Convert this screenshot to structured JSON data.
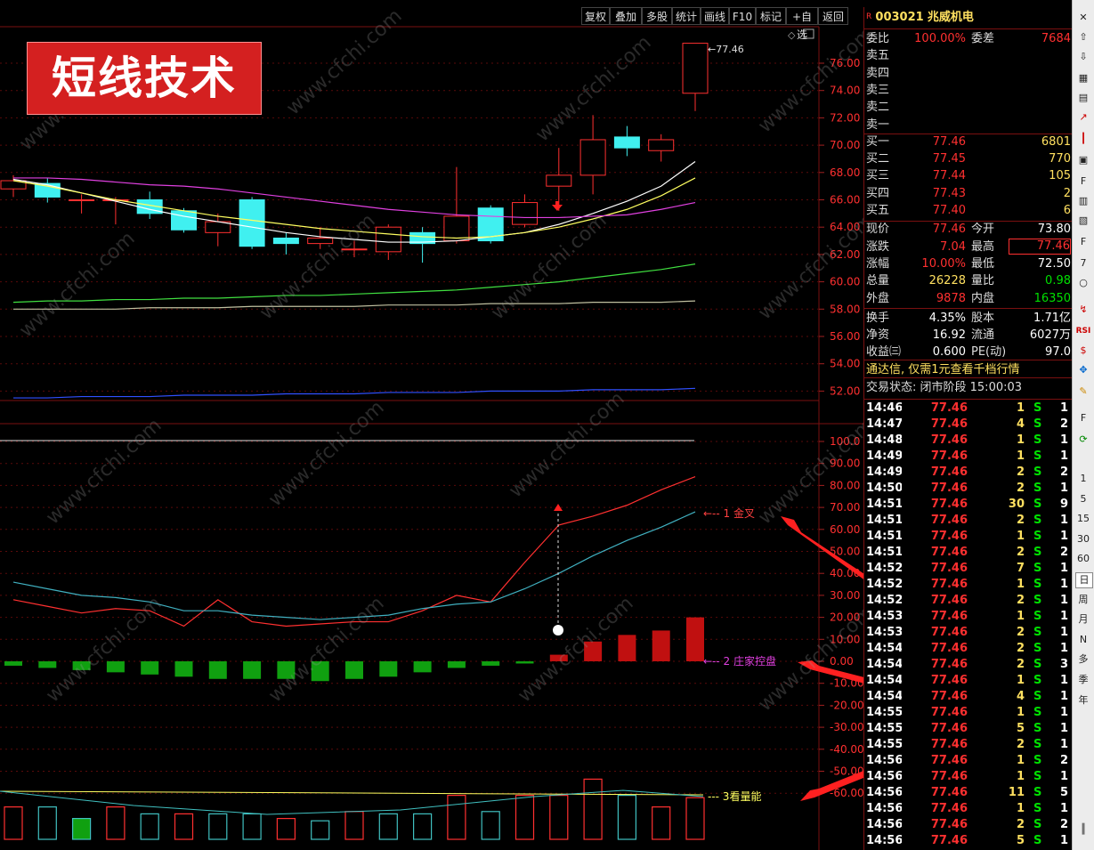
{
  "toolbar": {
    "buttons": [
      "复权",
      "叠加",
      "多股",
      "统计",
      "画线",
      "F10",
      "标记",
      "+自选",
      "返回"
    ]
  },
  "banner": {
    "text": "短线技术"
  },
  "watermark": "www.cfchi.com",
  "price_axis": {
    "ticks": [
      "76.00",
      "74.00",
      "72.00",
      "70.00",
      "68.00",
      "66.00",
      "64.00",
      "62.00",
      "60.00",
      "58.00",
      "56.00",
      "54.00",
      "52.00"
    ],
    "high_label": "77.46"
  },
  "indicator_axis": {
    "ticks": [
      "100.0",
      "90.00",
      "80.00",
      "70.00",
      "60.00",
      "50.00",
      "40.00",
      "30.00",
      "20.00",
      "10.00",
      "0.00",
      "-10.00",
      "-20.00",
      "-30.00",
      "-40.00",
      "-50.00",
      "-60.00"
    ]
  },
  "annotations": {
    "a1": "1 金叉",
    "a2": "2 庄家控盘",
    "a3": "3看量能"
  },
  "chart_data": {
    "type": "candlestick",
    "candles": [
      {
        "o": 66.8,
        "c": 67.4,
        "h": 67.8,
        "l": 66.2
      },
      {
        "o": 67.2,
        "c": 66.2,
        "h": 67.6,
        "l": 65.8
      },
      {
        "o": 66.0,
        "c": 66.0,
        "h": 66.4,
        "l": 65.0
      },
      {
        "o": 66.0,
        "c": 66.0,
        "h": 66.2,
        "l": 64.2
      },
      {
        "o": 66.0,
        "c": 65.0,
        "h": 66.6,
        "l": 64.6
      },
      {
        "o": 65.2,
        "c": 63.8,
        "h": 65.4,
        "l": 63.6
      },
      {
        "o": 63.6,
        "c": 64.4,
        "h": 65.0,
        "l": 62.6
      },
      {
        "o": 66.0,
        "c": 62.6,
        "h": 66.2,
        "l": 62.4
      },
      {
        "o": 63.2,
        "c": 62.8,
        "h": 63.6,
        "l": 62.0
      },
      {
        "o": 62.8,
        "c": 63.2,
        "h": 64.0,
        "l": 62.4
      },
      {
        "o": 62.4,
        "c": 62.4,
        "h": 63.0,
        "l": 61.8
      },
      {
        "o": 62.2,
        "c": 64.0,
        "h": 64.2,
        "l": 61.6
      },
      {
        "o": 63.6,
        "c": 62.8,
        "h": 64.0,
        "l": 61.4
      },
      {
        "o": 63.0,
        "c": 64.8,
        "h": 68.4,
        "l": 62.8
      },
      {
        "o": 65.4,
        "c": 63.0,
        "h": 65.6,
        "l": 62.8
      },
      {
        "o": 64.2,
        "c": 65.8,
        "h": 66.4,
        "l": 64.0
      },
      {
        "o": 67.0,
        "c": 67.8,
        "h": 69.8,
        "l": 65.2
      },
      {
        "o": 67.8,
        "c": 70.4,
        "h": 72.2,
        "l": 66.4
      },
      {
        "o": 70.6,
        "c": 69.8,
        "h": 71.4,
        "l": 69.2
      },
      {
        "o": 69.6,
        "c": 70.4,
        "h": 70.8,
        "l": 68.8
      },
      {
        "o": 73.8,
        "c": 77.46,
        "h": 77.46,
        "l": 72.5
      }
    ],
    "ma_white": [
      67.5,
      67.1,
      66.5,
      65.9,
      65.3,
      64.8,
      64.4,
      64.0,
      63.6,
      63.3,
      63.1,
      62.9,
      62.9,
      63.0,
      63.3,
      63.6,
      64.2,
      65.0,
      65.9,
      67.0,
      68.8
    ],
    "ma_yellow": [
      67.4,
      67.0,
      66.5,
      66.0,
      65.6,
      65.2,
      64.8,
      64.5,
      64.2,
      63.9,
      63.7,
      63.5,
      63.3,
      63.2,
      63.3,
      63.6,
      64.0,
      64.6,
      65.3,
      66.3,
      67.6
    ],
    "ma_magenta": [
      67.6,
      67.6,
      67.5,
      67.3,
      67.1,
      67.0,
      66.8,
      66.5,
      66.2,
      65.9,
      65.6,
      65.3,
      65.1,
      64.9,
      64.8,
      64.7,
      64.7,
      64.8,
      64.9,
      65.3,
      65.8
    ],
    "ma_green": [
      58.5,
      58.6,
      58.6,
      58.7,
      58.7,
      58.8,
      58.8,
      58.9,
      59.0,
      59.0,
      59.1,
      59.2,
      59.3,
      59.4,
      59.6,
      59.8,
      60.0,
      60.3,
      60.6,
      60.9,
      61.3
    ],
    "ma_gray": [
      58.0,
      58.0,
      58.0,
      58.0,
      58.1,
      58.1,
      58.1,
      58.2,
      58.2,
      58.2,
      58.2,
      58.3,
      58.3,
      58.3,
      58.4,
      58.4,
      58.4,
      58.5,
      58.5,
      58.5,
      58.6
    ],
    "ma_blue": [
      51.5,
      51.5,
      51.6,
      51.6,
      51.6,
      51.7,
      51.7,
      51.7,
      51.8,
      51.8,
      51.8,
      51.9,
      51.9,
      51.9,
      52.0,
      52.0,
      52.0,
      52.1,
      52.1,
      52.1,
      52.2
    ],
    "ind_red": [
      28,
      25,
      22,
      24,
      23,
      16,
      28,
      18,
      16,
      17,
      18,
      18,
      23,
      30,
      27,
      45,
      62,
      66,
      71,
      78,
      84
    ],
    "ind_cyan": [
      36,
      33,
      30,
      29,
      27,
      23,
      23,
      21,
      20,
      19,
      20,
      21,
      24,
      26,
      27,
      33,
      40,
      48,
      55,
      61,
      68
    ],
    "bars": [
      -2,
      -3,
      -4,
      -5,
      -6,
      -7,
      -8,
      -8,
      -8,
      -9,
      -8,
      -7,
      -5,
      -3,
      -2,
      -1,
      3,
      9,
      12,
      14,
      20
    ],
    "volume": [
      0.7,
      0.7,
      0.45,
      0.7,
      0.55,
      0.55,
      0.55,
      0.55,
      0.45,
      0.4,
      0.6,
      0.55,
      0.55,
      0.95,
      0.6,
      0.95,
      0.95,
      1.3,
      0.95,
      0.7,
      0.9
    ],
    "volume_up": [
      true,
      false,
      false,
      true,
      false,
      true,
      false,
      false,
      true,
      false,
      true,
      false,
      false,
      true,
      false,
      true,
      true,
      true,
      false,
      true,
      true
    ]
  },
  "stock": {
    "code": "003021",
    "name": "兆威机电",
    "rows": [
      [
        "委比",
        "100.00%",
        "委差",
        "7684"
      ],
      [
        "卖五",
        "",
        "",
        ""
      ],
      [
        "卖四",
        "",
        "",
        ""
      ],
      [
        "卖三",
        "",
        "",
        ""
      ],
      [
        "卖二",
        "",
        "",
        ""
      ],
      [
        "卖一",
        "",
        "",
        ""
      ],
      [
        "买一",
        "77.46",
        "",
        "6801"
      ],
      [
        "买二",
        "77.45",
        "",
        "770"
      ],
      [
        "买三",
        "77.44",
        "",
        "105"
      ],
      [
        "买四",
        "77.43",
        "",
        "2"
      ],
      [
        "买五",
        "77.40",
        "",
        "6"
      ],
      [
        "现价",
        "77.46",
        "今开",
        "73.80"
      ],
      [
        "涨跌",
        "7.04",
        "最高",
        "77.46"
      ],
      [
        "涨幅",
        "10.00%",
        "最低",
        "72.50"
      ],
      [
        "总量",
        "26228",
        "量比",
        "0.98"
      ],
      [
        "外盘",
        "9878",
        "内盘",
        "16350"
      ],
      [
        "换手",
        "4.35%",
        "股本",
        "1.71亿"
      ],
      [
        "净资",
        "16.92",
        "流通",
        "6027万"
      ],
      [
        "收益㈢",
        "0.600",
        "PE(动)",
        "97.0"
      ]
    ],
    "promo": "通达信, 仅需1元查看千档行情",
    "status": "交易状态: 闭市阶段 15:00:03"
  },
  "ticks": [
    [
      "14:46",
      "77.46",
      "1",
      "S",
      "1"
    ],
    [
      "14:47",
      "77.46",
      "4",
      "S",
      "2"
    ],
    [
      "14:48",
      "77.46",
      "1",
      "S",
      "1"
    ],
    [
      "14:49",
      "77.46",
      "1",
      "S",
      "1"
    ],
    [
      "14:49",
      "77.46",
      "2",
      "S",
      "2"
    ],
    [
      "14:50",
      "77.46",
      "2",
      "S",
      "1"
    ],
    [
      "14:51",
      "77.46",
      "30",
      "S",
      "9"
    ],
    [
      "14:51",
      "77.46",
      "2",
      "S",
      "1"
    ],
    [
      "14:51",
      "77.46",
      "1",
      "S",
      "1"
    ],
    [
      "14:51",
      "77.46",
      "2",
      "S",
      "2"
    ],
    [
      "14:52",
      "77.46",
      "7",
      "S",
      "1"
    ],
    [
      "14:52",
      "77.46",
      "1",
      "S",
      "1"
    ],
    [
      "14:52",
      "77.46",
      "2",
      "S",
      "1"
    ],
    [
      "14:53",
      "77.46",
      "1",
      "S",
      "1"
    ],
    [
      "14:53",
      "77.46",
      "2",
      "S",
      "1"
    ],
    [
      "14:54",
      "77.46",
      "2",
      "S",
      "1"
    ],
    [
      "14:54",
      "77.46",
      "2",
      "S",
      "3"
    ],
    [
      "14:54",
      "77.46",
      "1",
      "S",
      "1"
    ],
    [
      "14:54",
      "77.46",
      "4",
      "S",
      "1"
    ],
    [
      "14:55",
      "77.46",
      "1",
      "S",
      "1"
    ],
    [
      "14:55",
      "77.46",
      "5",
      "S",
      "1"
    ],
    [
      "14:55",
      "77.46",
      "2",
      "S",
      "1"
    ],
    [
      "14:56",
      "77.46",
      "1",
      "S",
      "2"
    ],
    [
      "14:56",
      "77.46",
      "1",
      "S",
      "1"
    ],
    [
      "14:56",
      "77.46",
      "11",
      "S",
      "5"
    ],
    [
      "14:56",
      "77.46",
      "1",
      "S",
      "1"
    ],
    [
      "14:56",
      "77.46",
      "2",
      "S",
      "2"
    ],
    [
      "14:56",
      "77.46",
      "5",
      "S",
      "1"
    ]
  ],
  "side_toolbar": [
    "1",
    "5",
    "15",
    "30",
    "60",
    "日",
    "周",
    "月",
    "N",
    "多",
    "季",
    "年"
  ]
}
